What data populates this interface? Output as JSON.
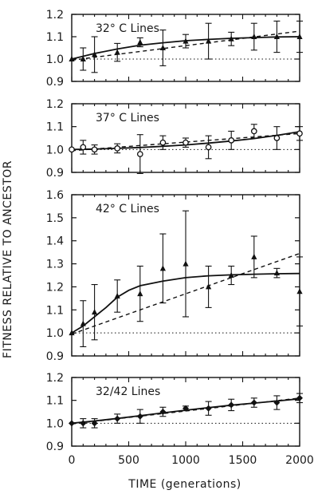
{
  "figure": {
    "ylabel": "FITNESS RELATIVE TO ANCESTOR",
    "xlabel": "TIME (generations)",
    "xticks": [
      "0",
      "500",
      "1000",
      "1500",
      "2000"
    ]
  },
  "chart_data": [
    {
      "type": "line",
      "title": "32° C Lines",
      "xlim": [
        0,
        2000
      ],
      "ylim": [
        0.9,
        1.2
      ],
      "yticks": [
        "0.9",
        "1.0",
        "1.1",
        "1.2"
      ],
      "reference_y": 1.0,
      "marker": "triangle",
      "points": [
        {
          "x": 0,
          "y": 1.0,
          "err": 0.0
        },
        {
          "x": 100,
          "y": 1.0,
          "err": 0.05
        },
        {
          "x": 200,
          "y": 1.02,
          "err": 0.08
        },
        {
          "x": 400,
          "y": 1.03,
          "err": 0.04
        },
        {
          "x": 600,
          "y": 1.075,
          "err": 0.02
        },
        {
          "x": 800,
          "y": 1.05,
          "err": 0.08
        },
        {
          "x": 1000,
          "y": 1.08,
          "err": 0.03
        },
        {
          "x": 1200,
          "y": 1.08,
          "err": 0.08
        },
        {
          "x": 1400,
          "y": 1.09,
          "err": 0.03
        },
        {
          "x": 1600,
          "y": 1.1,
          "err": 0.06
        },
        {
          "x": 1800,
          "y": 1.1,
          "err": 0.07
        },
        {
          "x": 2000,
          "y": 1.1,
          "err": 0.07
        }
      ],
      "fit_solid": [
        [
          0,
          1.0
        ],
        [
          200,
          1.025
        ],
        [
          400,
          1.045
        ],
        [
          600,
          1.062
        ],
        [
          800,
          1.073
        ],
        [
          1000,
          1.082
        ],
        [
          1200,
          1.088
        ],
        [
          1400,
          1.093
        ],
        [
          1600,
          1.096
        ],
        [
          1800,
          1.099
        ],
        [
          2000,
          1.1
        ]
      ],
      "fit_dashed": [
        [
          0,
          0.995
        ],
        [
          2000,
          1.125
        ]
      ]
    },
    {
      "type": "line",
      "title": "37° C Lines",
      "xlim": [
        0,
        2000
      ],
      "ylim": [
        0.9,
        1.2
      ],
      "yticks": [
        "0.9",
        "1.0",
        "1.1",
        "1.2"
      ],
      "reference_y": 1.0,
      "marker": "circle",
      "points": [
        {
          "x": 0,
          "y": 1.0,
          "err": 0.0
        },
        {
          "x": 100,
          "y": 1.01,
          "err": 0.03
        },
        {
          "x": 200,
          "y": 1.0,
          "err": 0.02
        },
        {
          "x": 400,
          "y": 1.005,
          "err": 0.02
        },
        {
          "x": 600,
          "y": 0.98,
          "err": 0.085
        },
        {
          "x": 800,
          "y": 1.03,
          "err": 0.03
        },
        {
          "x": 1000,
          "y": 1.03,
          "err": 0.02
        },
        {
          "x": 1200,
          "y": 1.01,
          "err": 0.05
        },
        {
          "x": 1400,
          "y": 1.04,
          "err": 0.04
        },
        {
          "x": 1600,
          "y": 1.08,
          "err": 0.03
        },
        {
          "x": 1800,
          "y": 1.05,
          "err": 0.05
        },
        {
          "x": 2000,
          "y": 1.07,
          "err": 0.03
        }
      ],
      "fit_solid": [
        [
          0,
          1.0
        ],
        [
          200,
          1.002
        ],
        [
          400,
          1.005
        ],
        [
          600,
          1.009
        ],
        [
          800,
          1.014
        ],
        [
          1000,
          1.02
        ],
        [
          1200,
          1.028
        ],
        [
          1400,
          1.037
        ],
        [
          1600,
          1.048
        ],
        [
          1800,
          1.062
        ],
        [
          2000,
          1.078
        ]
      ],
      "fit_dashed": [
        [
          0,
          0.995
        ],
        [
          2000,
          1.07
        ]
      ]
    },
    {
      "type": "line",
      "title": "42° C Lines",
      "xlim": [
        0,
        2000
      ],
      "ylim": [
        0.9,
        1.6
      ],
      "yticks": [
        "0.9",
        "1.0",
        "1.1",
        "1.2",
        "1.3",
        "1.4",
        "1.5",
        "1.6"
      ],
      "reference_y": 1.0,
      "marker": "triangle",
      "points": [
        {
          "x": 0,
          "y": 1.0,
          "err": 0.0
        },
        {
          "x": 100,
          "y": 1.04,
          "err": 0.1
        },
        {
          "x": 200,
          "y": 1.09,
          "err": 0.12
        },
        {
          "x": 400,
          "y": 1.16,
          "err": 0.07
        },
        {
          "x": 600,
          "y": 1.17,
          "err": 0.12
        },
        {
          "x": 800,
          "y": 1.28,
          "err": 0.15
        },
        {
          "x": 1000,
          "y": 1.3,
          "err": 0.23
        },
        {
          "x": 1200,
          "y": 1.2,
          "err": 0.09
        },
        {
          "x": 1400,
          "y": 1.25,
          "err": 0.04
        },
        {
          "x": 1600,
          "y": 1.33,
          "err": 0.09
        },
        {
          "x": 1800,
          "y": 1.26,
          "err": 0.02
        },
        {
          "x": 2000,
          "y": 1.18,
          "err": 0.15
        }
      ],
      "fit_solid": [
        [
          0,
          1.0
        ],
        [
          100,
          1.03
        ],
        [
          200,
          1.07
        ],
        [
          300,
          1.11
        ],
        [
          400,
          1.155
        ],
        [
          500,
          1.185
        ],
        [
          600,
          1.205
        ],
        [
          800,
          1.225
        ],
        [
          1000,
          1.24
        ],
        [
          1200,
          1.248
        ],
        [
          1400,
          1.252
        ],
        [
          1600,
          1.255
        ],
        [
          1800,
          1.257
        ],
        [
          2000,
          1.258
        ]
      ],
      "fit_dashed": [
        [
          0,
          0.995
        ],
        [
          2000,
          1.345
        ]
      ]
    },
    {
      "type": "line",
      "title": "32/42 Lines",
      "xlim": [
        0,
        2000
      ],
      "ylim": [
        0.9,
        1.2
      ],
      "yticks": [
        "0.9",
        "1.0",
        "1.1",
        "1.2"
      ],
      "reference_y": 1.0,
      "marker": "diamond",
      "points": [
        {
          "x": 0,
          "y": 1.0,
          "err": 0.0
        },
        {
          "x": 100,
          "y": 1.0,
          "err": 0.02
        },
        {
          "x": 200,
          "y": 1.0,
          "err": 0.02
        },
        {
          "x": 400,
          "y": 1.02,
          "err": 0.02
        },
        {
          "x": 600,
          "y": 1.03,
          "err": 0.03
        },
        {
          "x": 800,
          "y": 1.05,
          "err": 0.02
        },
        {
          "x": 1000,
          "y": 1.065,
          "err": 0.01
        },
        {
          "x": 1200,
          "y": 1.065,
          "err": 0.03
        },
        {
          "x": 1400,
          "y": 1.08,
          "err": 0.025
        },
        {
          "x": 1600,
          "y": 1.09,
          "err": 0.02
        },
        {
          "x": 1800,
          "y": 1.09,
          "err": 0.03
        },
        {
          "x": 2000,
          "y": 1.11,
          "err": 0.02
        }
      ],
      "fit_solid": [
        [
          0,
          1.0
        ],
        [
          200,
          1.01
        ],
        [
          400,
          1.021
        ],
        [
          600,
          1.033
        ],
        [
          800,
          1.045
        ],
        [
          1000,
          1.057
        ],
        [
          1200,
          1.068
        ],
        [
          1400,
          1.079
        ],
        [
          1600,
          1.088
        ],
        [
          1800,
          1.097
        ],
        [
          2000,
          1.107
        ]
      ],
      "fit_dashed": [
        [
          0,
          0.997
        ],
        [
          2000,
          1.11
        ]
      ]
    }
  ]
}
